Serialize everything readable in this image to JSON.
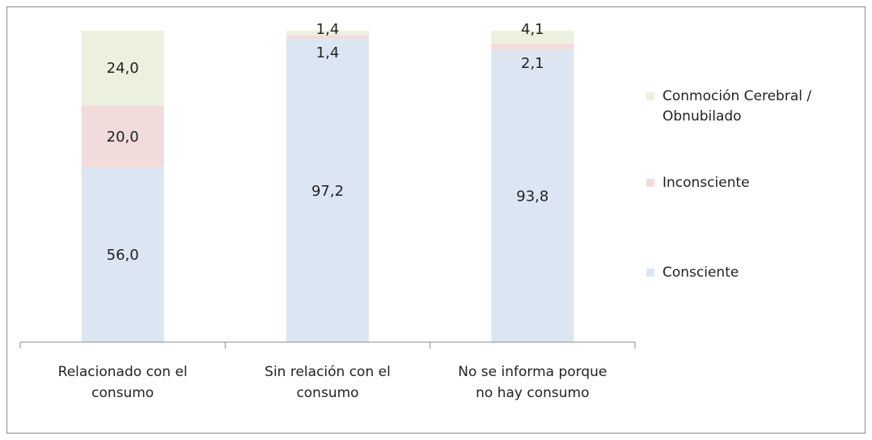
{
  "chart_data": {
    "type": "bar",
    "stacked": true,
    "percent_axis": true,
    "categories": [
      [
        "Relacionado con el",
        "consumo"
      ],
      [
        "Sin relación con el",
        "consumo"
      ],
      [
        "No se informa porque",
        "no hay consumo"
      ]
    ],
    "series": [
      {
        "name": "Consciente",
        "values": [
          56.0,
          97.2,
          93.8
        ],
        "labels": [
          "56,0",
          "97,2",
          "93,8"
        ],
        "color": "#dce6f2"
      },
      {
        "name": "Inconsciente",
        "values": [
          20.0,
          1.4,
          2.1
        ],
        "labels": [
          "20,0",
          "1,4",
          "2,1"
        ],
        "color": "#f2dcdb"
      },
      {
        "name": [
          "Conmoción Cerebral /",
          "Obnubilado"
        ],
        "values": [
          24.0,
          1.4,
          4.1
        ],
        "labels": [
          "24,0",
          "1,4",
          "4,1"
        ],
        "color": "#ebf1de"
      }
    ],
    "ylim": [
      0,
      100
    ],
    "grid": false,
    "legend": "right"
  }
}
